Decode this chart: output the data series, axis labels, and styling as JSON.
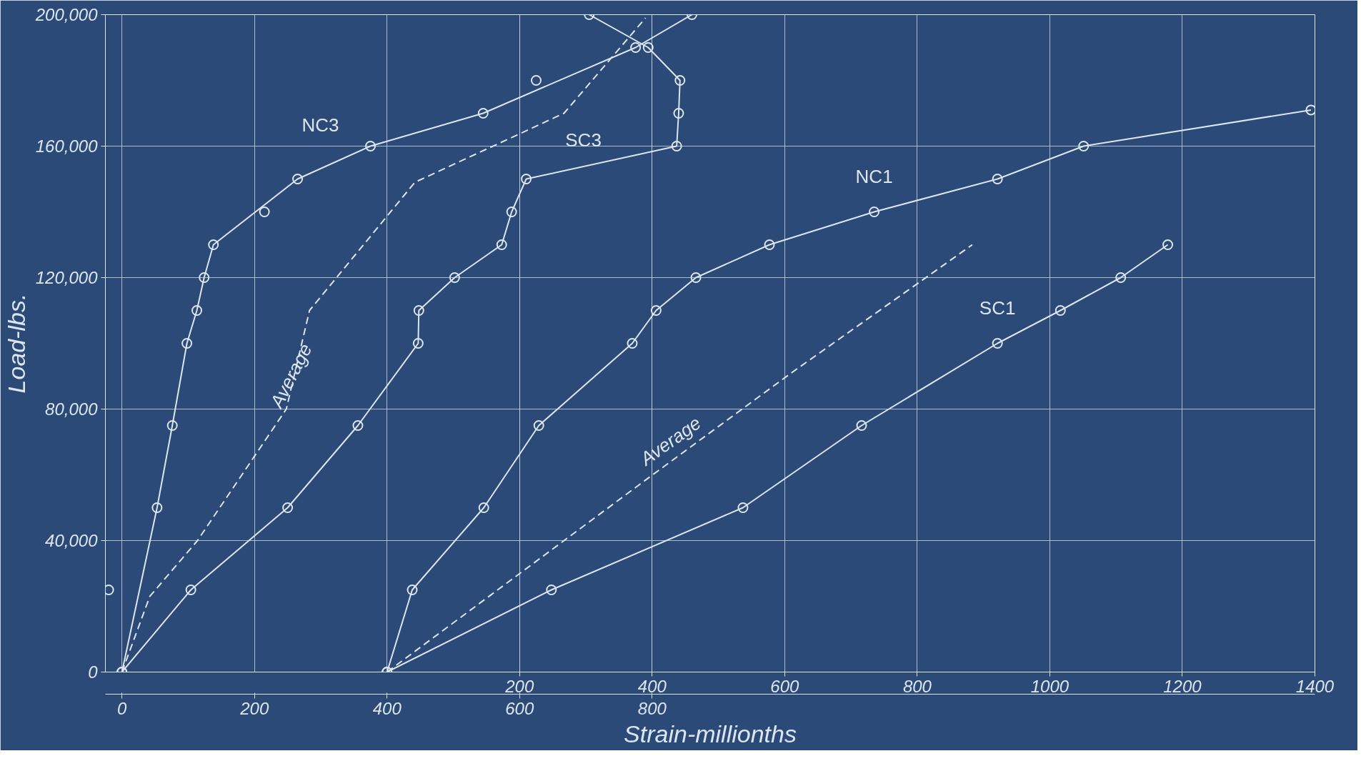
{
  "chart_data": {
    "type": "line",
    "xlabel": "Strain-millionths",
    "ylabel": "Load-lbs.",
    "xlim": [
      -25,
      1800
    ],
    "xticks": [
      0,
      200,
      400,
      600,
      800
    ],
    "x2lim": [
      -425,
      1400
    ],
    "x2ticks": [
      200,
      400,
      600,
      800,
      1000,
      1200,
      1400
    ],
    "ylim": [
      0,
      200000
    ],
    "yticks": [
      {
        "value": 0,
        "label": "0"
      },
      {
        "value": 40000,
        "label": "40,000"
      },
      {
        "value": 80000,
        "label": "80,000"
      },
      {
        "value": 120000,
        "label": "120,000"
      },
      {
        "value": 160000,
        "label": "160,000"
      },
      {
        "value": 200000,
        "label": "200,000"
      }
    ],
    "grid": true,
    "marker": "circle",
    "line_style": "solid",
    "series": [
      {
        "name": "NC3",
        "color": "#dde5ef",
        "x": [
          0,
          53,
          76,
          98,
          113,
          124,
          138,
          265,
          375,
          545,
          775,
          860
        ],
        "values": [
          0,
          50000,
          75000,
          100000,
          110000,
          120000,
          130000,
          150000,
          160000,
          170000,
          190000,
          200000
        ]
      },
      {
        "name": "SC3",
        "color": "#dde5ef",
        "x": [
          0,
          104,
          250,
          356,
          447,
          448,
          502,
          573,
          588,
          610,
          837,
          840,
          842,
          794,
          705
        ],
        "values": [
          0,
          25000,
          50000,
          75000,
          100000,
          110000,
          120000,
          130000,
          140000,
          150000,
          160000,
          170000,
          180000,
          190000,
          200000
        ]
      },
      {
        "name": "Average",
        "color": "#dde5ef",
        "marker": "none",
        "line_style": "dashed",
        "x": [
          0,
          42,
          114,
          248,
          283,
          442,
          667,
          790
        ],
        "values": [
          0,
          23000,
          40000,
          80000,
          110000,
          149000,
          170000,
          199000
        ]
      },
      {
        "name": "NC1",
        "color": "#dde5ef",
        "axis": "x2",
        "x": [
          0,
          38,
          146,
          229,
          370,
          406,
          466,
          577,
          735,
          921,
          1051,
          1394
        ],
        "values": [
          0,
          25000,
          50000,
          75000,
          100000,
          110000,
          120000,
          130000,
          140000,
          150000,
          160000,
          171000
        ]
      },
      {
        "name": "SC1",
        "color": "#dde5ef",
        "axis": "x2",
        "x": [
          0,
          248,
          537,
          716,
          921,
          1016,
          1107,
          1178
        ],
        "values": [
          0,
          25000,
          50000,
          75000,
          100000,
          110000,
          120000,
          130000
        ]
      },
      {
        "name": "Average",
        "color": "#dde5ef",
        "axis": "x2",
        "marker": "none",
        "line_style": "dashed",
        "x": [
          0,
          394,
          610,
          883
        ],
        "values": [
          0,
          59000,
          91000,
          130000
        ]
      },
      {
        "type": "scatter",
        "color": "#dde5ef",
        "x": [
          -20,
          215,
          625
        ],
        "values": [
          25000,
          140000,
          180000
        ]
      }
    ]
  }
}
